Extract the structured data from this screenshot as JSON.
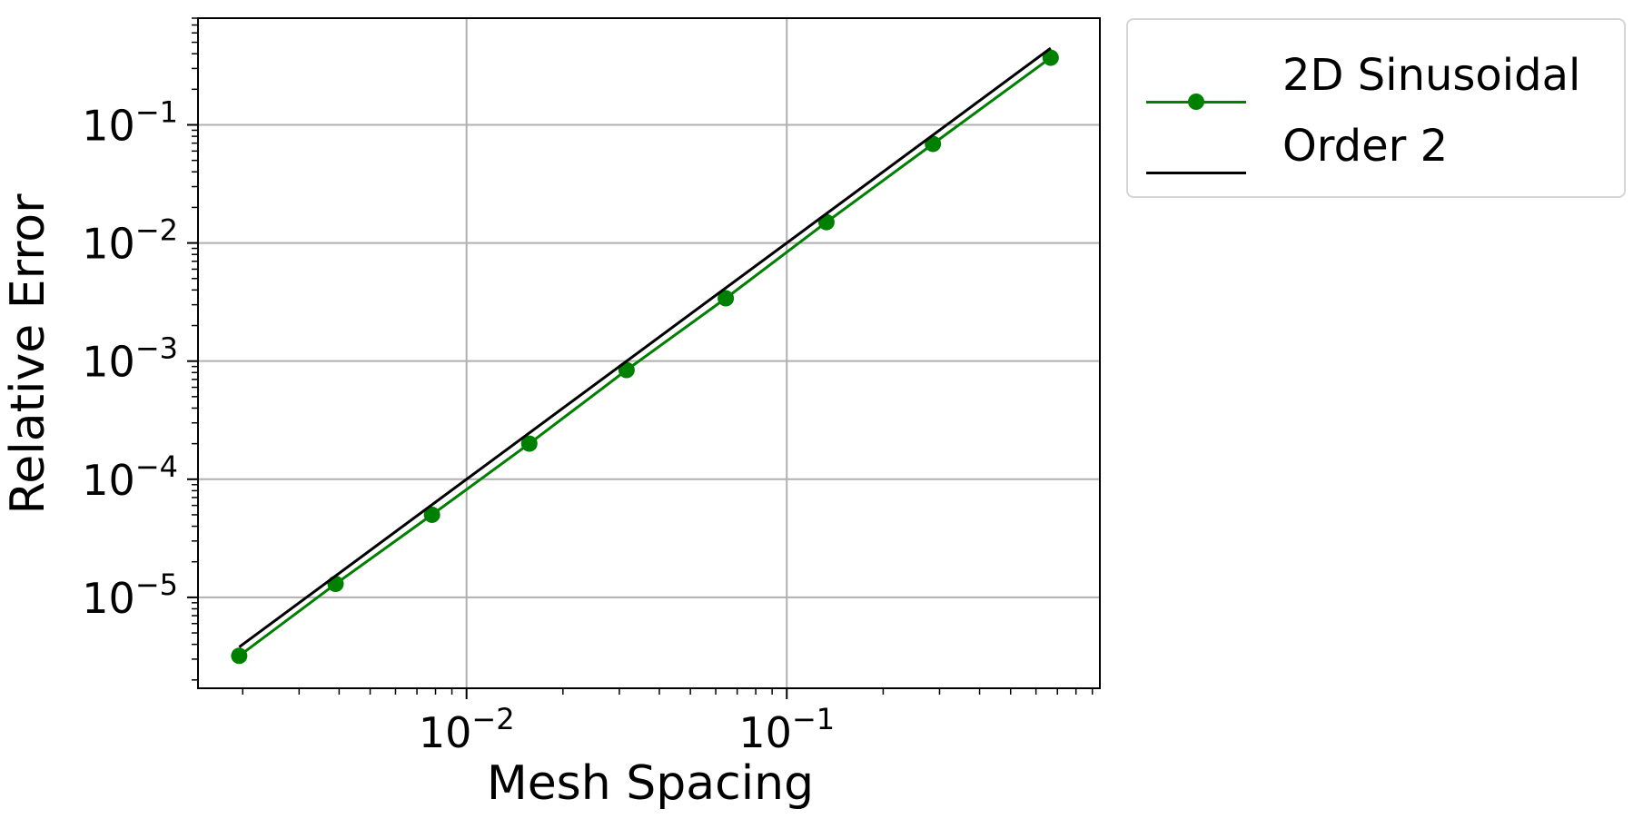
{
  "chart_data": {
    "type": "line",
    "title": "",
    "xlabel": "Mesh Spacing",
    "ylabel": "Relative Error",
    "xscale": "log",
    "yscale": "log",
    "xlim": [
      0.00145,
      0.95
    ],
    "ylim": [
      1.7e-06,
      0.8
    ],
    "grid": true,
    "legend_position": "outside-top-right",
    "x_tick_labels": [
      {
        "value": 0.01,
        "base": "10",
        "exp": "−2"
      },
      {
        "value": 0.1,
        "base": "10",
        "exp": "−1"
      }
    ],
    "y_tick_labels": [
      {
        "value": 0.1,
        "base": "10",
        "exp": "−1"
      },
      {
        "value": 0.01,
        "base": "10",
        "exp": "−2"
      },
      {
        "value": 0.001,
        "base": "10",
        "exp": "−3"
      },
      {
        "value": 0.0001,
        "base": "10",
        "exp": "−4"
      },
      {
        "value": 1e-05,
        "base": "10",
        "exp": "−5"
      }
    ],
    "series": [
      {
        "name": "2D Sinusoidal",
        "color": "#008000",
        "marker": "circle",
        "x": [
          0.00195,
          0.0039,
          0.0078,
          0.0157,
          0.0316,
          0.0645,
          0.133,
          0.286,
          0.667
        ],
        "y": [
          3.2e-06,
          1.3e-05,
          5e-05,
          0.0002,
          0.00084,
          0.0034,
          0.015,
          0.069,
          0.37
        ]
      },
      {
        "name": "Order 2",
        "color": "#000000",
        "marker": "none",
        "x": [
          0.00195,
          0.667
        ],
        "y": [
          3.8e-06,
          0.445
        ]
      }
    ]
  }
}
